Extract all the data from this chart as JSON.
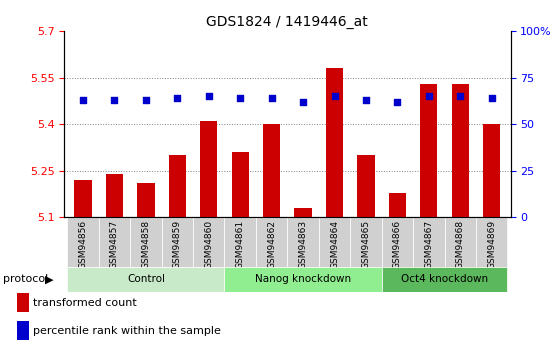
{
  "title": "GDS1824 / 1419446_at",
  "samples": [
    "GSM94856",
    "GSM94857",
    "GSM94858",
    "GSM94859",
    "GSM94860",
    "GSM94861",
    "GSM94862",
    "GSM94863",
    "GSM94864",
    "GSM94865",
    "GSM94866",
    "GSM94867",
    "GSM94868",
    "GSM94869"
  ],
  "transformed_count": [
    5.22,
    5.24,
    5.21,
    5.3,
    5.41,
    5.31,
    5.4,
    5.13,
    5.58,
    5.3,
    5.18,
    5.53,
    5.53,
    5.4
  ],
  "percentile_rank": [
    63,
    63,
    63,
    64,
    65,
    64,
    64,
    62,
    65,
    63,
    62,
    65,
    65,
    64
  ],
  "ylim_left": [
    5.1,
    5.7
  ],
  "ylim_right": [
    0,
    100
  ],
  "yticks_left": [
    5.1,
    5.25,
    5.4,
    5.55,
    5.7
  ],
  "yticks_right": [
    0,
    25,
    50,
    75,
    100
  ],
  "bar_color": "#cc0000",
  "dot_color": "#0000cc",
  "protocol_label": "protocol",
  "legend_bar_label": "transformed count",
  "legend_dot_label": "percentile rank within the sample",
  "groups_info": [
    {
      "name": "Control",
      "start": 0,
      "end": 4,
      "color": "#c8eac8"
    },
    {
      "name": "Nanog knockdown",
      "start": 5,
      "end": 9,
      "color": "#90ee90"
    },
    {
      "name": "Oct4 knockdown",
      "start": 10,
      "end": 13,
      "color": "#5cb85c"
    }
  ]
}
